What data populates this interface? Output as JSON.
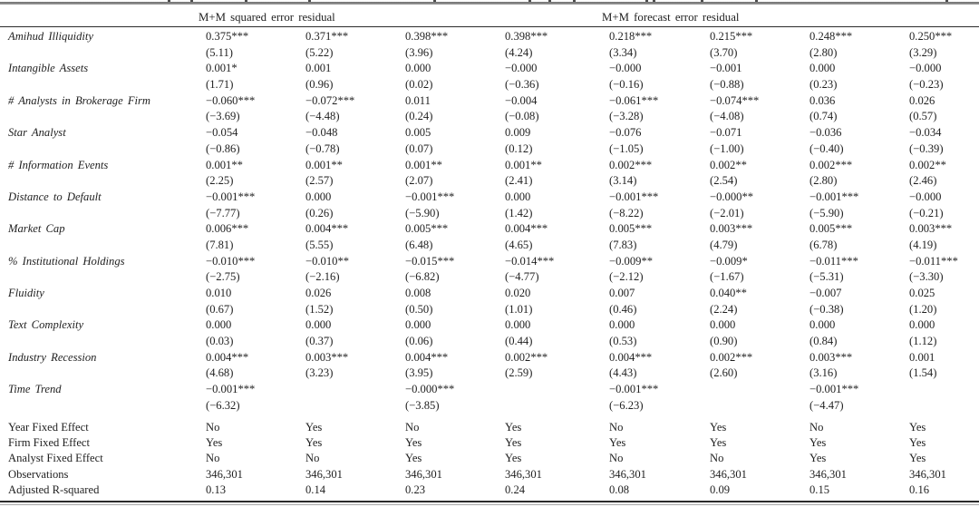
{
  "colors": {
    "background": "#ffffff",
    "text": "#1f1f1f",
    "top_rule": "#8d8d8d",
    "mid_rule": "#2b2b2b",
    "bottom_rule_dark": "#2b2b2b",
    "bottom_rule_light": "#a8a8a8"
  },
  "table": {
    "column_group_headers": [
      {
        "label": "M+M squared error residual",
        "span": 4
      },
      {
        "label": "M+M forecast error residual",
        "span": 4
      }
    ],
    "rows": [
      {
        "label": "Amihud Illiquidity",
        "coef": [
          "0.375***",
          "0.371***",
          "0.398***",
          "0.398***",
          "0.218***",
          "0.215***",
          "0.248***",
          "0.250***"
        ],
        "tstat": [
          "(5.11)",
          "(5.22)",
          "(3.96)",
          "(4.24)",
          "(3.34)",
          "(3.70)",
          "(2.80)",
          "(3.29)"
        ]
      },
      {
        "label": "Intangible Assets",
        "coef": [
          "0.001*",
          "0.001",
          "0.000",
          "−0.000",
          "−0.000",
          "−0.001",
          "0.000",
          "−0.000"
        ],
        "tstat": [
          "(1.71)",
          "(0.96)",
          "(0.02)",
          "(−0.36)",
          "(−0.16)",
          "(−0.88)",
          "(0.23)",
          "(−0.23)"
        ]
      },
      {
        "label": "# Analysts in Brokerage Firm",
        "coef": [
          "−0.060***",
          "−0.072***",
          "0.011",
          "−0.004",
          "−0.061***",
          "−0.074***",
          "0.036",
          "0.026"
        ],
        "tstat": [
          "(−3.69)",
          "(−4.48)",
          "(0.24)",
          "(−0.08)",
          "(−3.28)",
          "(−4.08)",
          "(0.74)",
          "(0.57)"
        ]
      },
      {
        "label": "Star Analyst",
        "coef": [
          "−0.054",
          "−0.048",
          "0.005",
          "0.009",
          "−0.076",
          "−0.071",
          "−0.036",
          "−0.034"
        ],
        "tstat": [
          "(−0.86)",
          "(−0.78)",
          "(0.07)",
          "(0.12)",
          "(−1.05)",
          "(−1.00)",
          "(−0.40)",
          "(−0.39)"
        ]
      },
      {
        "label": "# Information Events",
        "coef": [
          "0.001**",
          "0.001**",
          "0.001**",
          "0.001**",
          "0.002***",
          "0.002**",
          "0.002***",
          "0.002**"
        ],
        "tstat": [
          "(2.25)",
          "(2.57)",
          "(2.07)",
          "(2.41)",
          "(3.14)",
          "(2.54)",
          "(2.80)",
          "(2.46)"
        ]
      },
      {
        "label": "Distance to Default",
        "coef": [
          "−0.001***",
          "0.000",
          "−0.001***",
          "0.000",
          "−0.001***",
          "−0.000**",
          "−0.001***",
          "−0.000"
        ],
        "tstat": [
          "(−7.77)",
          "(0.26)",
          "(−5.90)",
          "(1.42)",
          "(−8.22)",
          "(−2.01)",
          "(−5.90)",
          "(−0.21)"
        ]
      },
      {
        "label": "Market Cap",
        "coef": [
          "0.006***",
          "0.004***",
          "0.005***",
          "0.004***",
          "0.005***",
          "0.003***",
          "0.005***",
          "0.003***"
        ],
        "tstat": [
          "(7.81)",
          "(5.55)",
          "(6.48)",
          "(4.65)",
          "(7.83)",
          "(4.79)",
          "(6.78)",
          "(4.19)"
        ]
      },
      {
        "label": "% Institutional Holdings",
        "coef": [
          "−0.010***",
          "−0.010**",
          "−0.015***",
          "−0.014***",
          "−0.009**",
          "−0.009*",
          "−0.011***",
          "−0.011***"
        ],
        "tstat": [
          "(−2.75)",
          "(−2.16)",
          "(−6.82)",
          "(−4.77)",
          "(−2.12)",
          "(−1.67)",
          "(−5.31)",
          "(−3.30)"
        ]
      },
      {
        "label": "Fluidity",
        "coef": [
          "0.010",
          "0.026",
          "0.008",
          "0.020",
          "0.007",
          "0.040**",
          "−0.007",
          "0.025"
        ],
        "tstat": [
          "(0.67)",
          "(1.52)",
          "(0.50)",
          "(1.01)",
          "(0.46)",
          "(2.24)",
          "(−0.38)",
          "(1.20)"
        ]
      },
      {
        "label": "Text Complexity",
        "coef": [
          "0.000",
          "0.000",
          "0.000",
          "0.000",
          "0.000",
          "0.000",
          "0.000",
          "0.000"
        ],
        "tstat": [
          "(0.03)",
          "(0.37)",
          "(0.06)",
          "(0.44)",
          "(0.53)",
          "(0.90)",
          "(0.84)",
          "(1.12)"
        ]
      },
      {
        "label": "Industry Recession",
        "coef": [
          "0.004***",
          "0.003***",
          "0.004***",
          "0.002***",
          "0.004***",
          "0.002***",
          "0.003***",
          "0.001"
        ],
        "tstat": [
          "(4.68)",
          "(3.23)",
          "(3.95)",
          "(2.59)",
          "(4.43)",
          "(2.60)",
          "(3.16)",
          "(1.54)"
        ]
      },
      {
        "label": "Time Trend",
        "coef": [
          "−0.001***",
          "",
          "−0.000***",
          "",
          "−0.001***",
          "",
          "−0.001***",
          ""
        ],
        "tstat": [
          "(−6.32)",
          "",
          "(−3.85)",
          "",
          "(−6.23)",
          "",
          "(−4.47)",
          ""
        ]
      }
    ],
    "bottom_rows": [
      {
        "label": "Year Fixed Effect",
        "values": [
          "No",
          "Yes",
          "No",
          "Yes",
          "No",
          "Yes",
          "No",
          "Yes"
        ]
      },
      {
        "label": "Firm Fixed Effect",
        "values": [
          "Yes",
          "Yes",
          "Yes",
          "Yes",
          "Yes",
          "Yes",
          "Yes",
          "Yes"
        ]
      },
      {
        "label": "Analyst Fixed Effect",
        "values": [
          "No",
          "No",
          "Yes",
          "Yes",
          "No",
          "No",
          "Yes",
          "Yes"
        ]
      },
      {
        "label": "Observations",
        "values": [
          "346,301",
          "346,301",
          "346,301",
          "346,301",
          "346,301",
          "346,301",
          "346,301",
          "346,301"
        ]
      },
      {
        "label": "Adjusted R-squared",
        "values": [
          "0.13",
          "0.14",
          "0.23",
          "0.24",
          "0.08",
          "0.09",
          "0.15",
          "0.16"
        ]
      }
    ]
  }
}
